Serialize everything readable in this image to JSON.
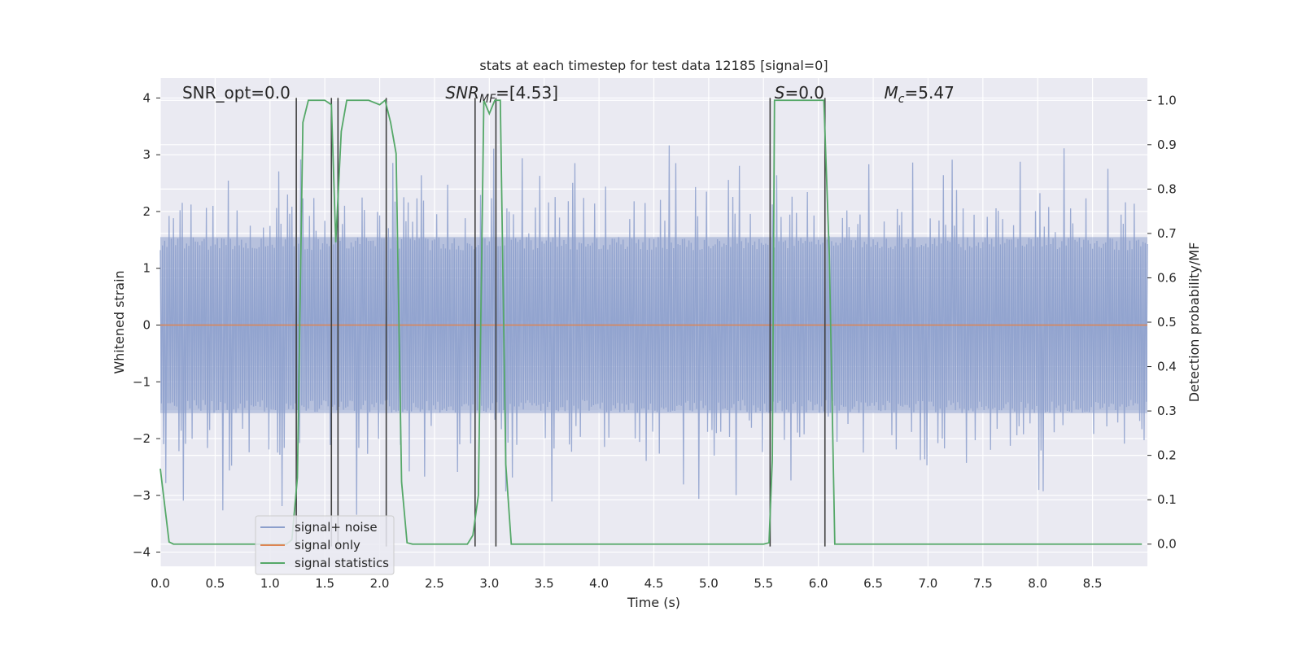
{
  "chart_data": {
    "type": "line",
    "title": "stats at each timestep for test data 12185 [signal=0]",
    "xlabel": "Time (s)",
    "ylabel_left": "Whitened strain",
    "ylabel_right": "Detection probability/MF",
    "xlim": [
      0,
      9.0
    ],
    "ylim_left": [
      -4.25,
      4.35
    ],
    "ylim_right": [
      -0.05,
      1.05
    ],
    "x_ticks": [
      "0.0",
      "0.5",
      "1.0",
      "1.5",
      "2.0",
      "2.5",
      "3.0",
      "3.5",
      "4.0",
      "4.5",
      "5.0",
      "5.5",
      "6.0",
      "6.5",
      "7.0",
      "7.5",
      "8.0",
      "8.5"
    ],
    "x_tick_values": [
      0,
      0.5,
      1,
      1.5,
      2,
      2.5,
      3,
      3.5,
      4,
      4.5,
      5,
      5.5,
      6,
      6.5,
      7,
      7.5,
      8,
      8.5
    ],
    "y_left_ticks": [
      "4",
      "3",
      "2",
      "1",
      "0",
      "−1",
      "−2",
      "−3",
      "−4"
    ],
    "y_left_tick_values": [
      4,
      3,
      2,
      1,
      0,
      -1,
      -2,
      -3,
      -4
    ],
    "y_right_ticks": [
      "1.0",
      "0.9",
      "0.8",
      "0.7",
      "0.6",
      "0.5",
      "0.4",
      "0.3",
      "0.2",
      "0.1",
      "0.0"
    ],
    "y_right_tick_values": [
      1.0,
      0.9,
      0.8,
      0.7,
      0.6,
      0.5,
      0.4,
      0.3,
      0.2,
      0.1,
      0.0
    ],
    "grid": true,
    "legend_position": "lower-left",
    "annotations": [
      {
        "text": "SNR_opt=0.0",
        "x": 0.2
      },
      {
        "text_main": "SNR",
        "text_sub": "MF",
        "text_rest": "=[4.53]",
        "x": 2.6
      },
      {
        "text_main": "S",
        "text_rest": "=0.0",
        "x": 5.6
      },
      {
        "text_main": "M",
        "text_sub": "c",
        "text_rest": "=5.47",
        "x": 6.6
      }
    ],
    "series": [
      {
        "name": "signal+ noise",
        "color": "#8c9fcc",
        "axis": "left",
        "kind": "noise",
        "sample_count": 900,
        "core_amplitude": 1.55,
        "peak_range": [
          -3.7,
          3.5
        ]
      },
      {
        "name": "signal only",
        "color": "#dd8452",
        "axis": "left",
        "x": [
          0,
          9.0
        ],
        "y": [
          0,
          0
        ]
      },
      {
        "name": "signal statistics",
        "color": "#55a868",
        "axis": "right",
        "x": [
          0.0,
          0.08,
          0.12,
          0.2,
          0.5,
          1.0,
          1.15,
          1.2,
          1.25,
          1.3,
          1.35,
          1.45,
          1.5,
          1.56,
          1.6,
          1.65,
          1.7,
          1.75,
          1.8,
          1.9,
          2.0,
          2.05,
          2.1,
          2.15,
          2.2,
          2.25,
          2.3,
          2.35,
          2.5,
          2.8,
          2.85,
          2.9,
          2.95,
          3.0,
          3.05,
          3.1,
          3.15,
          3.2,
          3.5,
          4.0,
          4.5,
          5.0,
          5.5,
          5.55,
          5.58,
          5.6,
          5.65,
          5.7,
          6.0,
          6.05,
          6.1,
          6.15,
          6.2,
          6.25,
          6.5,
          7.0,
          8.0,
          8.95
        ],
        "y": [
          0.17,
          0.005,
          0.0,
          0.0,
          0.0,
          0.0,
          0.0,
          0.01,
          0.15,
          0.95,
          1.0,
          1.0,
          1.0,
          0.99,
          0.68,
          0.93,
          1.0,
          1.0,
          1.0,
          1.0,
          0.99,
          1.0,
          0.95,
          0.88,
          0.14,
          0.003,
          0.0,
          0.0,
          0.0,
          0.0,
          0.02,
          0.11,
          1.0,
          0.97,
          1.0,
          1.0,
          0.18,
          0.0,
          0.0,
          0.0,
          0.0,
          0.0,
          0.0,
          0.003,
          0.19,
          1.0,
          1.0,
          1.0,
          1.0,
          1.0,
          0.65,
          0.0,
          0.0,
          0.0,
          0.0,
          0.0,
          0.0,
          0.0
        ]
      }
    ],
    "event_markers": {
      "color": "#404040",
      "x": [
        1.24,
        1.56,
        1.62,
        2.06,
        2.87,
        3.06,
        5.56,
        6.06
      ],
      "y_range": [
        -3.9,
        4.0
      ]
    }
  }
}
